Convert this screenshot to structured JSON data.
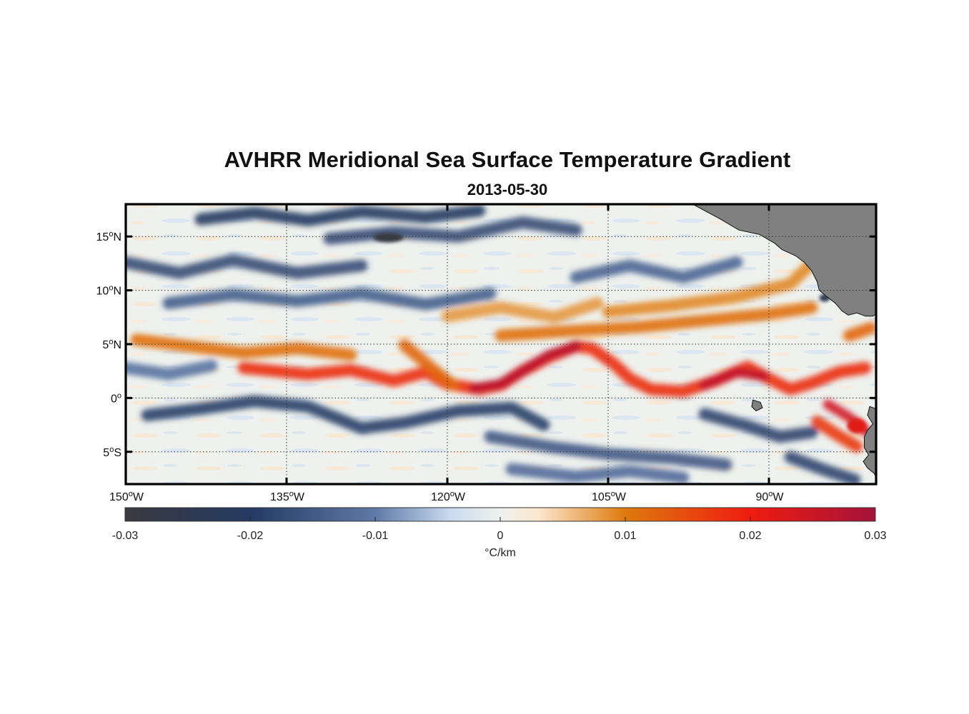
{
  "title": "AVHRR Meridional Sea Surface Temperature Gradient",
  "subtitle": "2013-05-30",
  "map": {
    "lon_range": [
      -150,
      -80
    ],
    "lat_range": [
      -8,
      18
    ],
    "land_color": "#808080",
    "grid": "dotted",
    "lon_ticks": [
      {
        "value": -150,
        "deg": "150",
        "suffix": "W"
      },
      {
        "value": -135,
        "deg": "135",
        "suffix": "W"
      },
      {
        "value": -120,
        "deg": "120",
        "suffix": "W"
      },
      {
        "value": -105,
        "deg": "105",
        "suffix": "W"
      },
      {
        "value": -90,
        "deg": "90",
        "suffix": "W"
      }
    ],
    "lat_ticks": [
      {
        "value": 15,
        "deg": "15",
        "suffix": "N"
      },
      {
        "value": 10,
        "deg": "10",
        "suffix": "N"
      },
      {
        "value": 5,
        "deg": "5",
        "suffix": "N"
      },
      {
        "value": 0,
        "deg": "0",
        "suffix": ""
      },
      {
        "value": -5,
        "deg": "5",
        "suffix": "S"
      }
    ]
  },
  "colorbar": {
    "min": -0.03,
    "max": 0.03,
    "ticks": [
      {
        "value": -0.03,
        "label": "-0.03"
      },
      {
        "value": -0.02,
        "label": "-0.02"
      },
      {
        "value": -0.01,
        "label": "-0.01"
      },
      {
        "value": 0,
        "label": "0"
      },
      {
        "value": 0.01,
        "label": "0.01"
      },
      {
        "value": 0.02,
        "label": "0.02"
      },
      {
        "value": 0.03,
        "label": "0.03"
      }
    ],
    "units": "°C/km",
    "colors": [
      {
        "value": -0.03,
        "color": "#3a3a40"
      },
      {
        "value": -0.02,
        "color": "#243a62"
      },
      {
        "value": -0.01,
        "color": "#5f79a8"
      },
      {
        "value": -0.004,
        "color": "#c9dbef"
      },
      {
        "value": 0,
        "color": "#eef1ee"
      },
      {
        "value": 0.003,
        "color": "#fbe8cf"
      },
      {
        "value": 0.01,
        "color": "#de7a0d"
      },
      {
        "value": 0.02,
        "color": "#ee1c10"
      },
      {
        "value": 0.03,
        "color": "#a3133a"
      }
    ]
  },
  "features": [
    {
      "type": "band",
      "value": 0.018,
      "points": [
        [
          -139,
          2.8
        ],
        [
          -133,
          2.2
        ],
        [
          -129,
          2.6
        ],
        [
          -125,
          1.6
        ],
        [
          -122,
          2.4
        ],
        [
          -120,
          1.3
        ],
        [
          -117,
          0.8
        ],
        [
          -115,
          1.2
        ],
        [
          -113,
          2.5
        ],
        [
          -110.5,
          3.8
        ],
        [
          -108,
          4.8
        ],
        [
          -106.5,
          4.6
        ],
        [
          -104.5,
          3.2
        ],
        [
          -103,
          1.8
        ],
        [
          -101,
          0.8
        ],
        [
          -98,
          0.6
        ],
        [
          -95,
          1.6
        ],
        [
          -92,
          2.9
        ],
        [
          -90,
          1.8
        ],
        [
          -88,
          0.8
        ],
        [
          -86,
          1.4
        ],
        [
          -83.5,
          2.4
        ],
        [
          -81,
          2.8
        ]
      ]
    },
    {
      "type": "band",
      "value": 0.027,
      "points": [
        [
          -117.5,
          0.9
        ],
        [
          -115,
          1.3
        ],
        [
          -112.5,
          2.8
        ],
        [
          -110.5,
          4.0
        ],
        [
          -108,
          4.8
        ]
      ]
    },
    {
      "type": "band",
      "value": 0.026,
      "points": [
        [
          -96,
          1.2
        ],
        [
          -93,
          2.4
        ],
        [
          -90.5,
          2.0
        ]
      ]
    },
    {
      "type": "band",
      "value": 0.012,
      "points": [
        [
          -124,
          4.9
        ],
        [
          -121.5,
          2.8
        ],
        [
          -119.5,
          1.2
        ]
      ]
    },
    {
      "type": "band",
      "value": 0.011,
      "points": [
        [
          -149,
          5.4
        ],
        [
          -144,
          4.8
        ],
        [
          -139,
          4.2
        ],
        [
          -134,
          4.6
        ],
        [
          -129,
          4.0
        ]
      ]
    },
    {
      "type": "band",
      "value": 0.011,
      "points": [
        [
          -115,
          5.8
        ],
        [
          -109,
          6.2
        ],
        [
          -102,
          6.6
        ],
        [
          -96,
          7.2
        ],
        [
          -90,
          7.8
        ],
        [
          -86,
          8.4
        ]
      ]
    },
    {
      "type": "band",
      "value": 0.009,
      "points": [
        [
          -105,
          8.0
        ],
        [
          -99,
          8.6
        ],
        [
          -93,
          9.4
        ],
        [
          -88,
          10.6
        ],
        [
          -86,
          12.5
        ]
      ]
    },
    {
      "type": "band",
      "value": 0.012,
      "points": [
        [
          -82.5,
          5.8
        ],
        [
          -80.5,
          6.5
        ]
      ]
    },
    {
      "type": "band",
      "value": 0.024,
      "points": [
        [
          -84.5,
          -0.6
        ],
        [
          -82.5,
          -1.8
        ],
        [
          -80.8,
          -3.2
        ]
      ]
    },
    {
      "type": "band",
      "value": 0.017,
      "points": [
        [
          -85.5,
          -2.2
        ],
        [
          -83.5,
          -3.5
        ],
        [
          -81.8,
          -4.5
        ]
      ]
    },
    {
      "type": "band",
      "value": -0.019,
      "points": [
        [
          -148,
          -1.6
        ],
        [
          -143,
          -1.0
        ],
        [
          -138,
          -0.3
        ],
        [
          -133,
          -0.8
        ],
        [
          -128,
          -2.8
        ],
        [
          -124,
          -2.3
        ],
        [
          -119,
          -1.2
        ],
        [
          -114,
          -0.9
        ],
        [
          -111,
          -2.5
        ]
      ]
    },
    {
      "type": "band",
      "value": -0.015,
      "points": [
        [
          -116,
          -3.6
        ],
        [
          -110,
          -4.6
        ],
        [
          -105,
          -5.2
        ],
        [
          -99,
          -5.6
        ],
        [
          -94,
          -6.2
        ]
      ]
    },
    {
      "type": "band",
      "value": -0.018,
      "points": [
        [
          -96,
          -1.5
        ],
        [
          -92,
          -2.6
        ],
        [
          -89,
          -3.6
        ],
        [
          -86,
          -3.2
        ]
      ]
    },
    {
      "type": "band",
      "value": -0.018,
      "points": [
        [
          -88,
          -5.5
        ],
        [
          -84.5,
          -6.8
        ],
        [
          -82,
          -7.6
        ]
      ]
    },
    {
      "type": "band",
      "value": -0.017,
      "points": [
        [
          -150,
          12.6
        ],
        [
          -145,
          11.6
        ],
        [
          -140,
          12.8
        ],
        [
          -134,
          11.6
        ],
        [
          -128,
          12.3
        ]
      ]
    },
    {
      "type": "band",
      "value": -0.02,
      "points": [
        [
          -143,
          16.6
        ],
        [
          -138,
          17.2
        ],
        [
          -133,
          16.5
        ],
        [
          -128,
          17.3
        ],
        [
          -122,
          16.8
        ],
        [
          -117,
          17.4
        ]
      ]
    },
    {
      "type": "band",
      "value": -0.017,
      "points": [
        [
          -131,
          14.8
        ],
        [
          -125,
          15.4
        ],
        [
          -119,
          15.0
        ],
        [
          -113,
          16.3
        ],
        [
          -108,
          15.6
        ]
      ]
    },
    {
      "type": "band",
      "value": -0.014,
      "points": [
        [
          -146,
          8.8
        ],
        [
          -140,
          9.6
        ],
        [
          -134,
          9.0
        ],
        [
          -128,
          9.7
        ],
        [
          -122,
          8.7
        ],
        [
          -116,
          9.7
        ]
      ]
    },
    {
      "type": "band",
      "value": -0.013,
      "points": [
        [
          -108,
          11.2
        ],
        [
          -103,
          12.3
        ],
        [
          -98,
          11.2
        ],
        [
          -93,
          12.6
        ]
      ]
    },
    {
      "type": "band",
      "value": -0.012,
      "points": [
        [
          -114,
          -6.6
        ],
        [
          -108,
          -7.3
        ],
        [
          -103,
          -6.8
        ],
        [
          -98,
          -7.4
        ]
      ]
    },
    {
      "type": "band",
      "value": -0.011,
      "points": [
        [
          -150,
          2.8
        ],
        [
          -146,
          2.2
        ],
        [
          -142,
          3.0
        ]
      ]
    },
    {
      "type": "band",
      "value": 0.008,
      "points": [
        [
          -120,
          7.6
        ],
        [
          -115,
          8.4
        ],
        [
          -110,
          7.5
        ],
        [
          -106,
          8.8
        ]
      ]
    },
    {
      "type": "spot",
      "value": -0.029,
      "lon": -125.5,
      "lat": 14.9,
      "rx": 1.4,
      "ry": 0.45
    },
    {
      "type": "spot",
      "value": 0.022,
      "lon": -81.8,
      "lat": -2.6,
      "rx": 0.9,
      "ry": 0.7
    },
    {
      "type": "spot",
      "value": 0.022,
      "lon": -83.6,
      "lat": 10.9,
      "rx": 0.25,
      "ry": 0.4
    },
    {
      "type": "spot",
      "value": -0.025,
      "lon": -84.8,
      "lat": 9.3,
      "rx": 0.5,
      "ry": 0.35
    }
  ],
  "land": [
    {
      "name": "central-america",
      "points": [
        [
          -97.1,
          18
        ],
        [
          -94.5,
          16.6
        ],
        [
          -92.8,
          15.6
        ],
        [
          -90.9,
          15.2
        ],
        [
          -89.5,
          14.4
        ],
        [
          -88.8,
          13.8
        ],
        [
          -87.5,
          13.2
        ],
        [
          -86.7,
          12.6
        ],
        [
          -86.0,
          11.8
        ],
        [
          -85.5,
          10.8
        ],
        [
          -85.3,
          10.0
        ],
        [
          -84.7,
          9.5
        ],
        [
          -83.8,
          8.8
        ],
        [
          -83.2,
          8.1
        ],
        [
          -82.6,
          7.7
        ],
        [
          -81.8,
          7.9
        ],
        [
          -81.0,
          7.6
        ],
        [
          -80.3,
          7.6
        ],
        [
          -80,
          7.8
        ],
        [
          -80,
          18
        ]
      ]
    },
    {
      "name": "south-america",
      "points": [
        [
          -80,
          -1.0
        ],
        [
          -80.6,
          -0.8
        ],
        [
          -80.8,
          -1.6
        ],
        [
          -80.3,
          -2.4
        ],
        [
          -80.8,
          -3.0
        ],
        [
          -81.1,
          -3.6
        ],
        [
          -81.1,
          -4.6
        ],
        [
          -80.7,
          -5.3
        ],
        [
          -81.2,
          -5.9
        ],
        [
          -80.8,
          -6.5
        ],
        [
          -80.2,
          -7.0
        ],
        [
          -80,
          -7.3
        ]
      ]
    },
    {
      "name": "galapagos",
      "points": [
        [
          -91.5,
          -0.2
        ],
        [
          -90.8,
          -0.4
        ],
        [
          -90.6,
          -0.9
        ],
        [
          -91.2,
          -1.2
        ],
        [
          -91.6,
          -0.8
        ]
      ]
    }
  ]
}
